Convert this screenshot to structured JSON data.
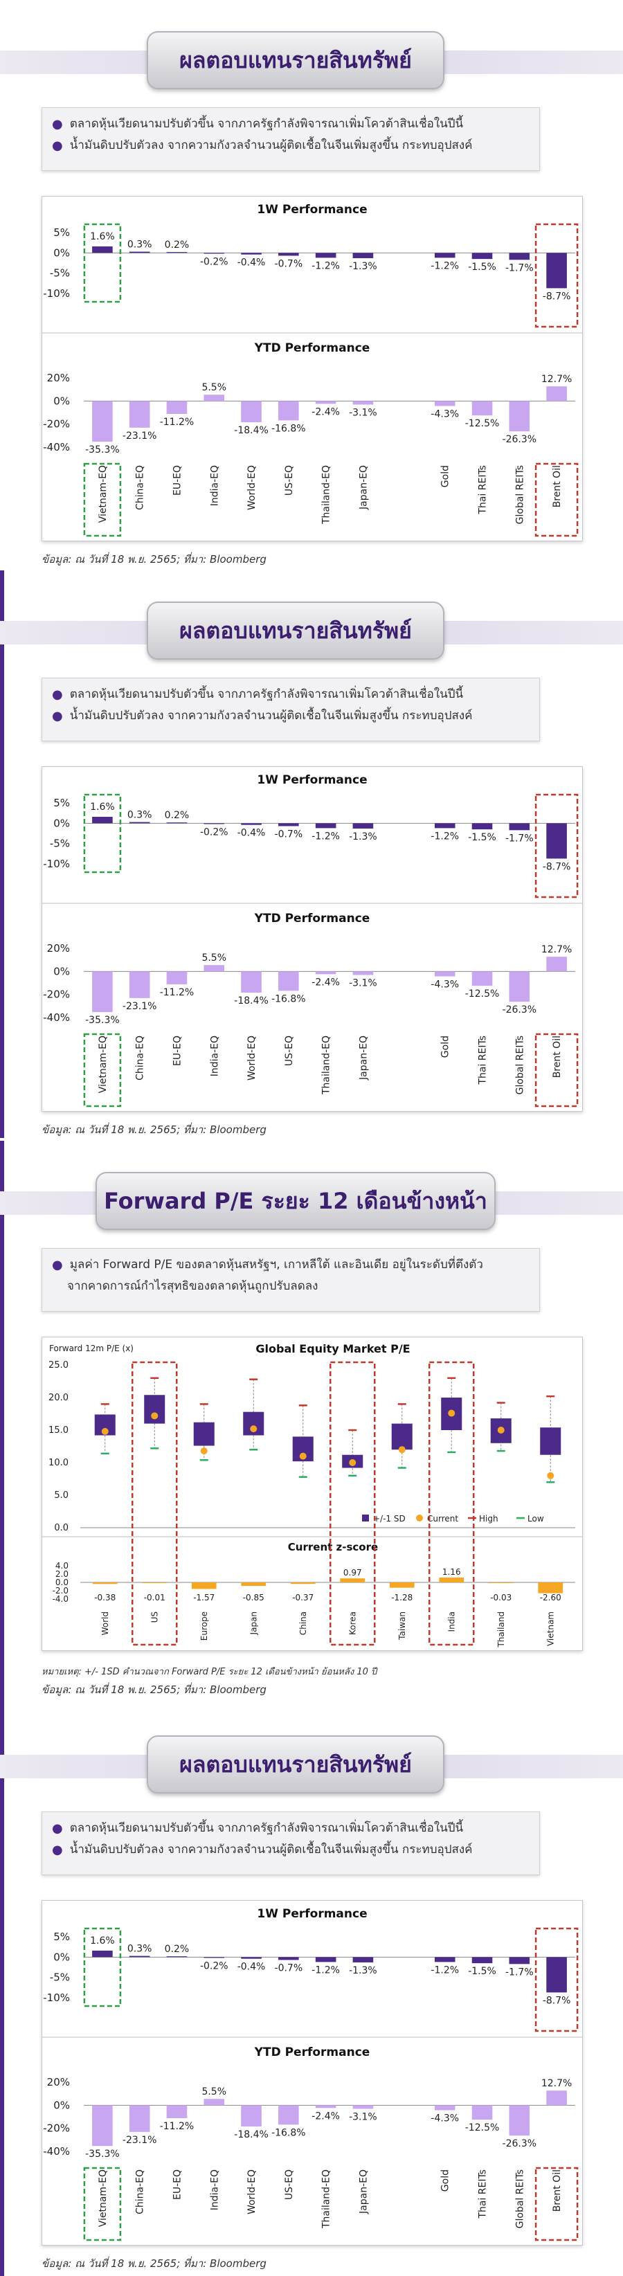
{
  "perf_title": "ผลตอบแทนรายสินทรัพย์",
  "perf_bullets": [
    "ตลาดหุ้นเวียดนามปรับตัวขึ้น จากภาครัฐกำลังพิจารณาเพิ่มโควต้าสินเชื่อในปีนี้",
    "น้ำมันดิบปรับตัวลง จากความกังวลจำนวนผู้ติดเชื้อในจีนเพิ่มสูงขึ้น กระทบอุปสงค์"
  ],
  "perf_source": "ข้อมูล: ณ วันที่ 18 พ.ย. 2565; ที่มา: Bloomberg",
  "pe_title": "Forward P/E ระยะ 12 เดือนข้างหน้า",
  "pe_bullets": [
    "มูลค่า Forward P/E ของตลาดหุ้นสหรัฐฯ, เกาหลีใต้ และอินเดีย อยู่ในระดับที่ตึงตัว",
    "จากคาดการณ์กำไรสุทธิของตลาดหุ้นถูกปรับลดลง"
  ],
  "pe_note": "หมายเหตุ: +/- 1SD คำนวณจาก Forward P/E ระยะ 12 เดือนข้างหน้า ย้อนหลัง 10 ปี",
  "pe_source": "ข้อมูล: ณ วันที่ 18 พ.ย. 2565; ที่มา: Bloomberg",
  "colors": {
    "purple": "#4b2a8a",
    "lavender": "#c9a6f0",
    "orange": "#f5a623",
    "red": "#c0392b",
    "green": "#27ae60",
    "redbox": "#c0392b",
    "greenbox": "#2ea043"
  },
  "chart_data": [
    {
      "type": "bar",
      "title": "1W Performance",
      "categories": [
        "Vietnam-EQ",
        "China-EQ",
        "EU-EQ",
        "India-EQ",
        "World-EQ",
        "US-EQ",
        "Thailand-EQ",
        "Japan-EQ",
        "Gold",
        "Thai REITs",
        "Global REITs",
        "Brent Oil"
      ],
      "values": [
        1.6,
        0.3,
        0.2,
        -0.2,
        -0.4,
        -0.7,
        -1.2,
        -1.3,
        -1.2,
        -1.5,
        -1.7,
        -8.7
      ],
      "value_labels": [
        "1.6%",
        "0.3%",
        "0.2%",
        "-0.2%",
        "-0.4%",
        "-0.7%",
        "-1.2%",
        "-1.3%",
        "-1.2%",
        "-1.5%",
        "-1.7%",
        "-8.7%"
      ],
      "yticks": [
        "5%",
        "0%",
        "-5%",
        "-10%"
      ],
      "ylim": [
        -10,
        5
      ],
      "highlight": {
        "green": "Vietnam-EQ",
        "red": "Brent Oil"
      }
    },
    {
      "type": "bar",
      "title": "YTD Performance",
      "categories": [
        "Vietnam-EQ",
        "China-EQ",
        "EU-EQ",
        "India-EQ",
        "World-EQ",
        "US-EQ",
        "Thailand-EQ",
        "Japan-EQ",
        "Gold",
        "Thai REITs",
        "Global REITs",
        "Brent Oil"
      ],
      "values": [
        -35.3,
        -23.1,
        -11.2,
        5.5,
        -18.4,
        -16.8,
        -2.4,
        -3.1,
        -4.3,
        -12.5,
        -26.3,
        12.7
      ],
      "value_labels": [
        "-35.3%",
        "-23.1%",
        "-11.2%",
        "5.5%",
        "-18.4%",
        "-16.8%",
        "-2.4%",
        "-3.1%",
        "-4.3%",
        "-12.5%",
        "-26.3%",
        "12.7%"
      ],
      "yticks": [
        "20%",
        "0%",
        "-20%",
        "-40%"
      ],
      "ylim": [
        -40,
        20
      ],
      "highlight": {
        "green": "Vietnam-EQ",
        "red": "Brent Oil"
      }
    },
    {
      "type": "box",
      "title": "Global Equity Market P/E",
      "ylabel": "Forward 12m P/E (x)",
      "categories": [
        "World",
        "US",
        "Europe",
        "Japan",
        "China",
        "Korea",
        "Taiwan",
        "India",
        "Thailand",
        "Vietnam"
      ],
      "sd_low": [
        14.2,
        16.0,
        12.6,
        14.2,
        10.2,
        9.2,
        12.0,
        15.0,
        13.0,
        11.2
      ],
      "sd_high": [
        17.4,
        20.4,
        16.2,
        17.8,
        14.0,
        11.2,
        16.0,
        20.0,
        16.8,
        15.4
      ],
      "current": [
        14.8,
        17.2,
        11.8,
        15.2,
        11.0,
        10.0,
        12.0,
        17.6,
        15.0,
        8.0
      ],
      "high": [
        19.0,
        23.0,
        19.0,
        22.8,
        18.8,
        15.0,
        19.0,
        23.0,
        19.2,
        20.2
      ],
      "low": [
        11.4,
        12.2,
        10.4,
        12.0,
        7.8,
        8.0,
        9.2,
        11.6,
        11.8,
        7.0
      ],
      "yticks": [
        "25.0",
        "20.0",
        "15.0",
        "10.0",
        "5.0",
        "0.0"
      ],
      "ylim": [
        0,
        25
      ],
      "legend": [
        "+/-1 SD",
        "Current",
        "High",
        "Low"
      ],
      "highlight": {
        "red": [
          "US",
          "Korea",
          "India"
        ]
      }
    },
    {
      "type": "bar",
      "title": "Current z-score",
      "categories": [
        "World",
        "US",
        "Europe",
        "Japan",
        "China",
        "Korea",
        "Taiwan",
        "India",
        "Thailand",
        "Vietnam"
      ],
      "values": [
        -0.38,
        -0.01,
        -1.57,
        -0.85,
        -0.37,
        0.97,
        -1.28,
        1.16,
        -0.03,
        -2.6
      ],
      "value_labels": [
        "-0.38",
        "-0.01",
        "-1.57",
        "-0.85",
        "-0.37",
        "0.97",
        "-1.28",
        "1.16",
        "-0.03",
        "-2.60"
      ],
      "yticks": [
        "4.0",
        "2.0",
        "0.0",
        "-2.0",
        "-4.0"
      ],
      "ylim": [
        -4,
        4
      ]
    }
  ]
}
